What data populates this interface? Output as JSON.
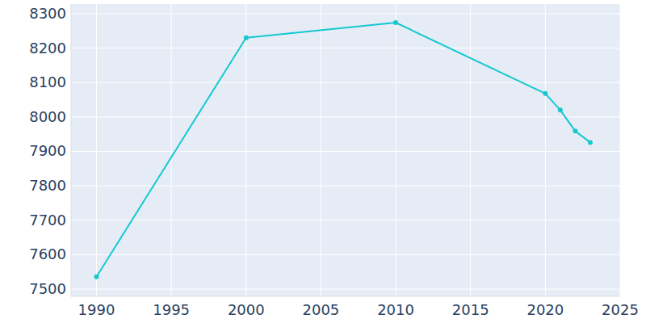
{
  "chart_data": {
    "type": "line",
    "x": [
      1990,
      2000,
      2010,
      2020,
      2021,
      2022,
      2023
    ],
    "values": [
      7536,
      8230,
      8274,
      8068,
      8020,
      7959,
      7926
    ],
    "color": "#17c8cf",
    "marker": "circle",
    "xlim": [
      1988.3,
      2025
    ],
    "ylim": [
      7479,
      8328
    ],
    "xticks": [
      1990,
      1995,
      2000,
      2005,
      2010,
      2015,
      2020,
      2025
    ],
    "yticks": [
      7500,
      7600,
      7700,
      7800,
      7900,
      8000,
      8100,
      8200,
      8300
    ],
    "grid": true
  }
}
